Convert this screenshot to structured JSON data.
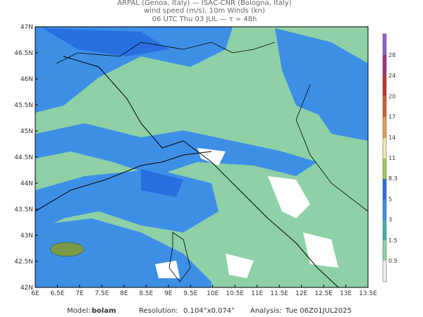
{
  "header": {
    "line1": "ARPAL (Genoa, Italy)  —  ISAC-CNR (Bologna, Italy)",
    "line2": "wind speed (m/s), 10m Winds (kn)",
    "line3": "06 UTC Thu 03 JUL  —  τ = 48h"
  },
  "map": {
    "lon_labels": [
      "6E",
      "6.5E",
      "7E",
      "7.5E",
      "8E",
      "8.5E",
      "9E",
      "9.5E",
      "10E",
      "10.5E",
      "11E",
      "11.5E",
      "12E",
      "12.5E",
      "13E",
      "13.5E"
    ],
    "lat_labels": [
      "42N",
      "42.5N",
      "43N",
      "43.5N",
      "44N",
      "44.5N",
      "45N",
      "45.5N",
      "46N",
      "46.5N",
      "47N"
    ]
  },
  "colorbar": {
    "labels": [
      "0.5",
      "1.5",
      "3",
      "5",
      "8.3",
      "11",
      "14",
      "17",
      "20",
      "24",
      "28"
    ]
  },
  "footer": {
    "model_label": "Model:",
    "model": "bolam",
    "resolution_label": "Resolution:",
    "resolution": "0.104°x0.074°",
    "analysis_label": "Analysis:",
    "analysis": "Tue 06Z01JUL2025"
  }
}
